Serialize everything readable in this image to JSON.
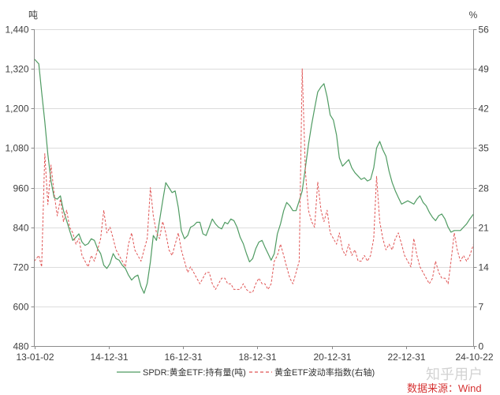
{
  "watermark": "知乎用户",
  "chart_data": {
    "type": "line",
    "source": "数据来源：Wind",
    "grid": "horizontal",
    "legend": "bottom",
    "x_axis": {
      "lim": [
        "2013-01-02",
        "2024-10-22"
      ],
      "tick_labels": [
        "13-01-02",
        "14-12-31",
        "16-12-31",
        "18-12-31",
        "20-12-31",
        "22-12-31",
        "24-10-22"
      ]
    },
    "y_left": {
      "unit": "吨",
      "lim": [
        480,
        1440
      ],
      "tick_labels": [
        "480",
        "600",
        "720",
        "840",
        "960",
        "1,080",
        "1,200",
        "1,320",
        "1,440"
      ]
    },
    "y_right": {
      "unit": "%",
      "lim": [
        0,
        56
      ],
      "tick_labels": [
        "0",
        "7",
        "14",
        "21",
        "28",
        "35",
        "42",
        "49",
        "56"
      ]
    },
    "x": [
      "2013-01-02",
      "2013-02-15",
      "2013-03-15",
      "2013-04-15",
      "2013-05-15",
      "2013-06-15",
      "2013-07-15",
      "2013-08-15",
      "2013-09-15",
      "2013-10-15",
      "2013-11-15",
      "2013-12-15",
      "2014-01-15",
      "2014-02-15",
      "2014-03-15",
      "2014-04-15",
      "2014-05-15",
      "2014-06-15",
      "2014-07-15",
      "2014-08-15",
      "2014-09-15",
      "2014-10-15",
      "2014-11-15",
      "2014-12-15",
      "2015-01-15",
      "2015-02-15",
      "2015-03-15",
      "2015-04-15",
      "2015-05-15",
      "2015-06-15",
      "2015-07-15",
      "2015-08-15",
      "2015-09-15",
      "2015-10-15",
      "2015-11-15",
      "2015-12-15",
      "2016-01-15",
      "2016-02-15",
      "2016-03-15",
      "2016-04-15",
      "2016-05-15",
      "2016-06-15",
      "2016-07-15",
      "2016-08-15",
      "2016-09-15",
      "2016-10-15",
      "2016-11-15",
      "2016-12-15",
      "2017-01-15",
      "2017-02-15",
      "2017-03-15",
      "2017-04-15",
      "2017-05-15",
      "2017-06-15",
      "2017-07-15",
      "2017-08-15",
      "2017-09-15",
      "2017-10-15",
      "2017-11-15",
      "2017-12-15",
      "2018-01-15",
      "2018-02-15",
      "2018-03-15",
      "2018-04-15",
      "2018-05-15",
      "2018-06-15",
      "2018-07-15",
      "2018-08-15",
      "2018-09-15",
      "2018-10-15",
      "2018-11-15",
      "2018-12-15",
      "2019-01-15",
      "2019-02-15",
      "2019-03-15",
      "2019-04-15",
      "2019-05-15",
      "2019-06-15",
      "2019-07-15",
      "2019-08-15",
      "2019-09-15",
      "2019-10-15",
      "2019-11-15",
      "2019-12-15",
      "2020-01-15",
      "2020-02-15",
      "2020-03-15",
      "2020-04-15",
      "2020-05-15",
      "2020-06-15",
      "2020-07-15",
      "2020-08-15",
      "2020-09-15",
      "2020-10-15",
      "2020-11-15",
      "2020-12-15",
      "2021-01-15",
      "2021-02-15",
      "2021-03-15",
      "2021-04-15",
      "2021-05-15",
      "2021-06-15",
      "2021-07-15",
      "2021-08-15",
      "2021-09-15",
      "2021-10-15",
      "2021-11-15",
      "2021-12-15",
      "2022-01-15",
      "2022-02-15",
      "2022-03-15",
      "2022-04-15",
      "2022-05-15",
      "2022-06-15",
      "2022-07-15",
      "2022-08-15",
      "2022-09-15",
      "2022-10-15",
      "2022-11-15",
      "2022-12-15",
      "2023-01-15",
      "2023-02-15",
      "2023-03-15",
      "2023-04-15",
      "2023-05-15",
      "2023-06-15",
      "2023-07-15",
      "2023-08-15",
      "2023-09-15",
      "2023-10-15",
      "2023-11-15",
      "2023-12-15",
      "2024-01-15",
      "2024-02-15",
      "2024-03-15",
      "2024-04-15",
      "2024-05-15",
      "2024-06-15",
      "2024-07-15",
      "2024-08-15",
      "2024-09-15",
      "2024-10-22"
    ],
    "series": [
      {
        "name": "SPDR:黄金ETF:持有量(吨)",
        "axis": "left",
        "color": "#4f9b62",
        "line_style": "solid",
        "values": [
          1350,
          1335,
          1250,
          1160,
          1060,
          980,
          930,
          925,
          935,
          890,
          860,
          830,
          800,
          810,
          820,
          795,
          785,
          790,
          805,
          800,
          775,
          760,
          725,
          715,
          730,
          760,
          745,
          740,
          725,
          715,
          695,
          680,
          690,
          695,
          660,
          640,
          670,
          735,
          815,
          800,
          860,
          920,
          975,
          960,
          945,
          950,
          900,
          830,
          805,
          815,
          840,
          845,
          855,
          855,
          820,
          815,
          840,
          865,
          850,
          840,
          835,
          855,
          850,
          865,
          860,
          840,
          810,
          790,
          760,
          735,
          745,
          775,
          795,
          800,
          780,
          760,
          740,
          760,
          820,
          850,
          890,
          915,
          905,
          890,
          890,
          920,
          950,
          1020,
          1090,
          1150,
          1200,
          1250,
          1265,
          1275,
          1235,
          1180,
          1165,
          1120,
          1050,
          1025,
          1035,
          1045,
          1020,
          1005,
          995,
          985,
          990,
          980,
          985,
          1020,
          1080,
          1100,
          1075,
          1055,
          1010,
          975,
          950,
          930,
          910,
          915,
          920,
          915,
          910,
          925,
          935,
          915,
          905,
          885,
          870,
          860,
          875,
          880,
          865,
          840,
          825,
          830,
          830,
          830,
          840,
          850,
          865,
          880
        ]
      },
      {
        "name": "黄金ETF波动率指数(右轴)",
        "axis": "right",
        "color": "#e05555",
        "line_style": "dashed",
        "values": [
          15,
          16,
          14,
          34,
          25,
          32,
          27,
          23,
          26,
          22,
          24,
          21,
          20,
          18,
          19,
          16,
          15,
          14,
          16,
          15,
          17,
          19,
          24,
          20,
          21,
          19,
          17,
          16,
          15,
          14,
          18,
          20,
          17,
          16,
          15,
          17,
          19,
          28,
          23,
          20,
          19,
          22,
          20,
          17,
          16,
          18,
          20,
          17,
          15,
          13,
          14,
          13,
          12,
          11,
          12,
          13,
          13,
          11,
          10,
          11,
          12,
          12,
          11,
          11,
          10,
          10,
          10,
          11,
          10,
          9.5,
          9.5,
          11,
          12,
          11,
          11,
          10,
          11,
          15,
          16,
          18,
          16,
          14,
          12,
          11,
          13,
          15,
          49,
          31,
          24,
          22,
          21,
          29,
          24,
          22,
          24,
          20,
          19,
          18,
          20,
          17,
          16,
          18,
          16,
          17,
          15,
          15,
          16,
          15,
          16,
          19,
          30,
          22,
          19,
          17,
          18,
          17,
          19,
          20,
          18,
          16,
          15,
          14,
          19,
          16,
          14,
          13,
          12,
          11,
          12,
          15,
          13,
          12,
          12,
          11,
          15,
          20,
          17,
          15,
          16,
          15,
          16,
          18
        ]
      }
    ]
  }
}
